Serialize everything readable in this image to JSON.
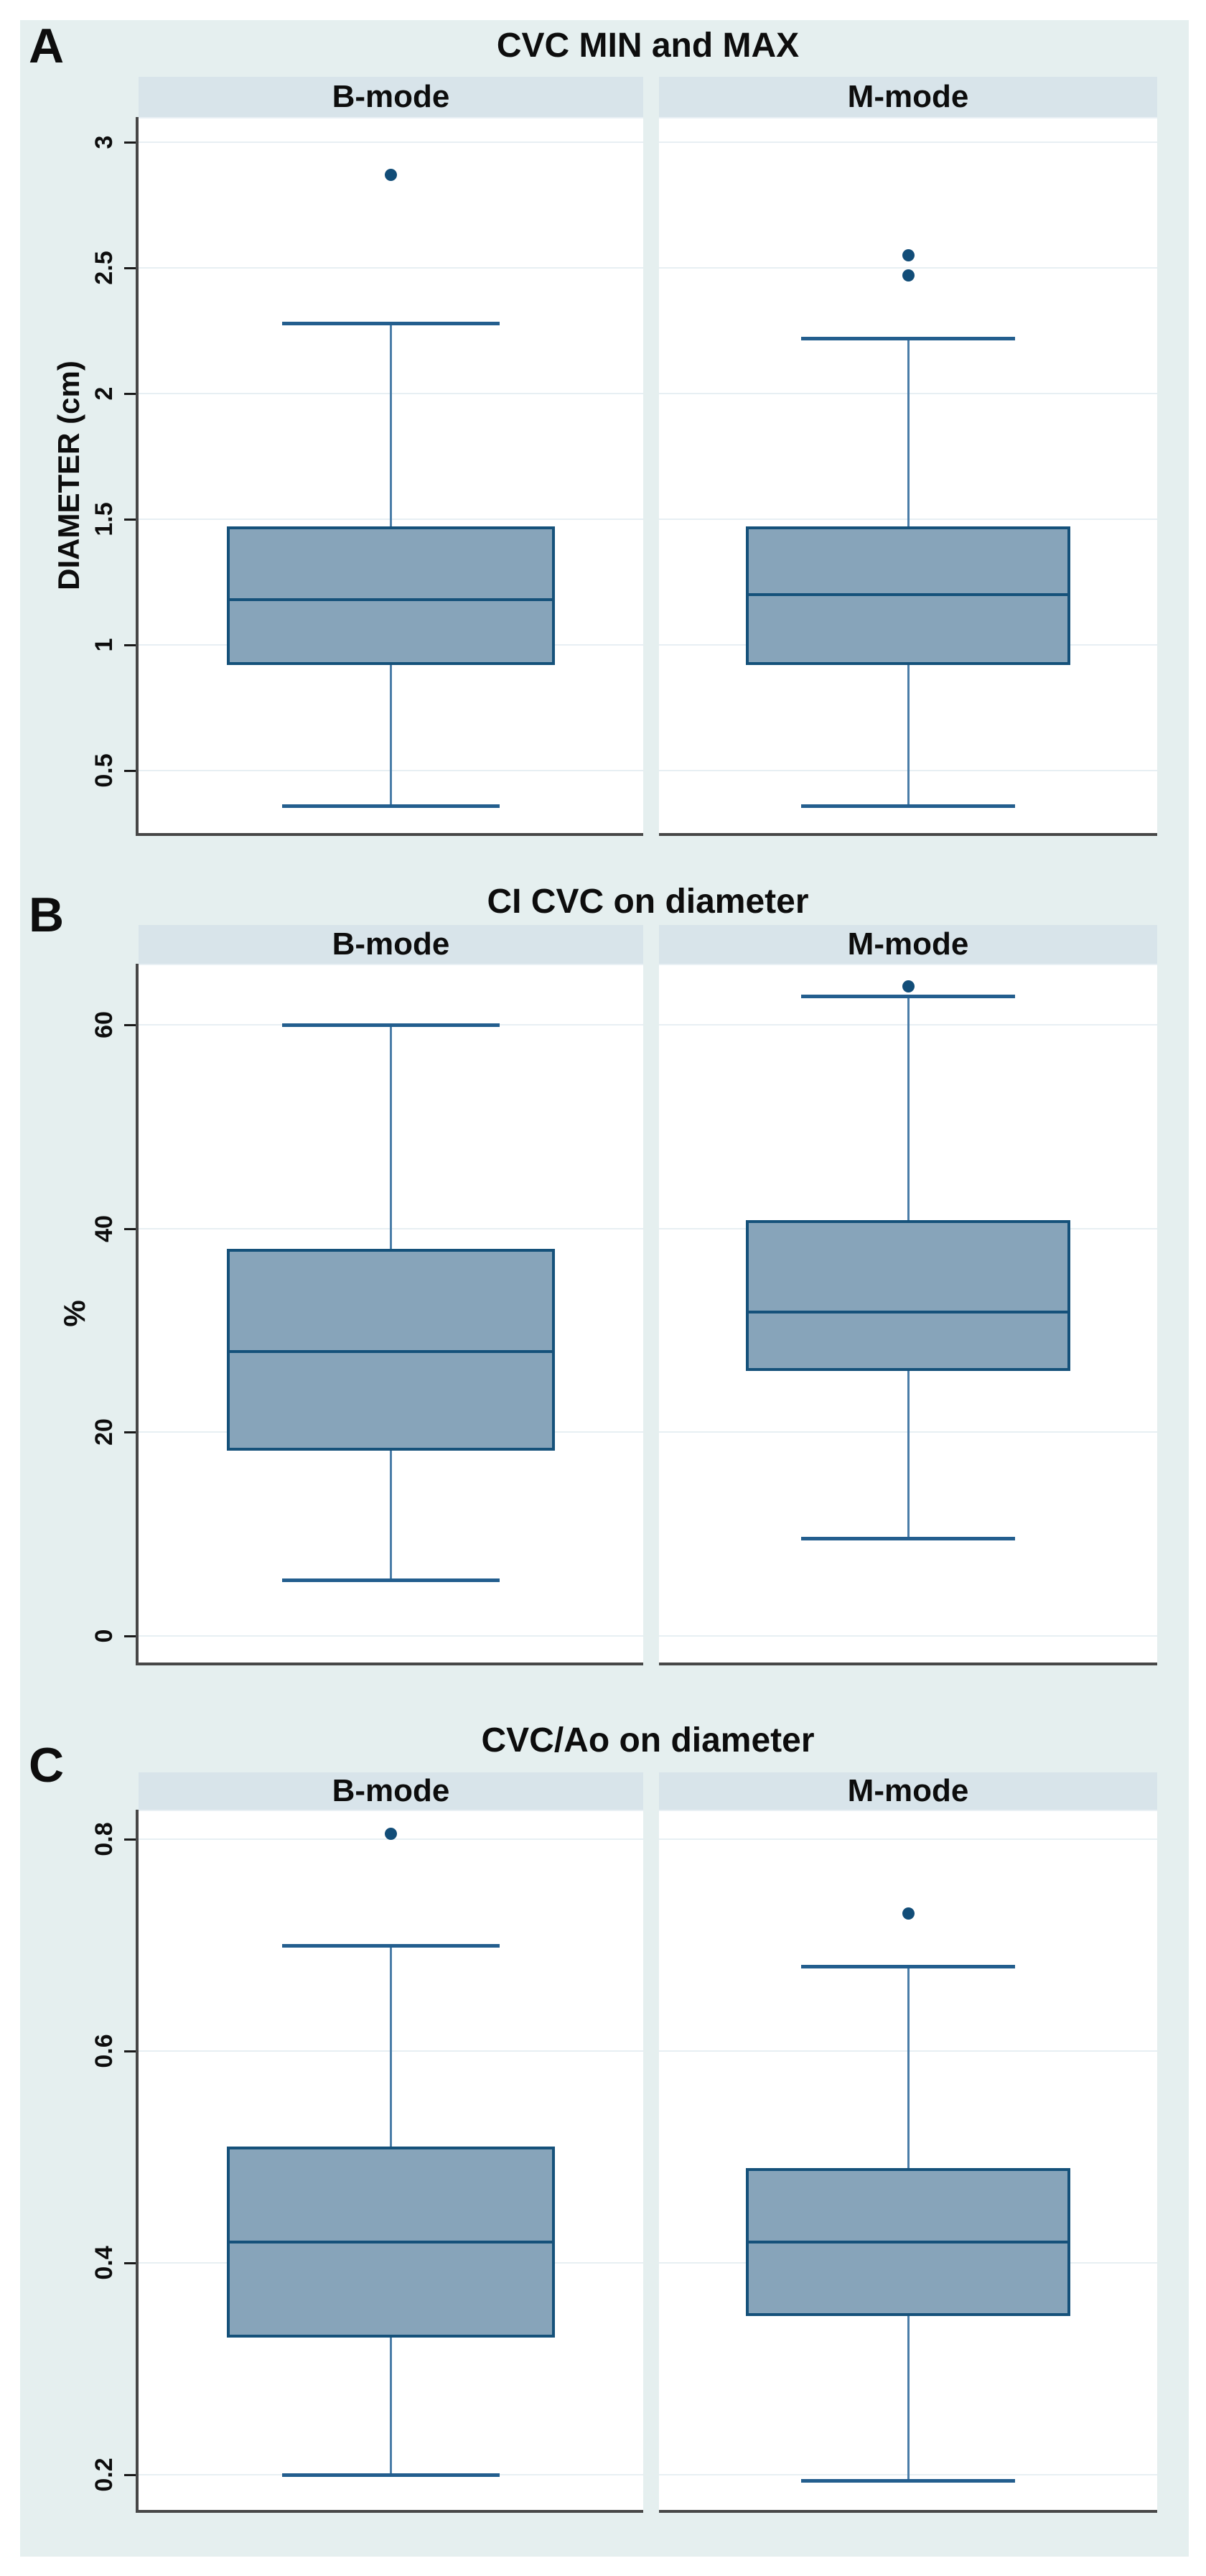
{
  "figure": {
    "panel_letters": [
      "A",
      "B",
      "C"
    ],
    "group_headers": [
      "B-mode",
      "M-mode"
    ]
  },
  "palette": {
    "figure_bg": "#e5efef",
    "strip_bg": "#d8e4ea",
    "plot_bg": "#ffffff",
    "gridline": "#e7eff3",
    "box_fill": "#87a4ba",
    "box_border": "#15517a",
    "median": "#15517a",
    "whisker_line": "#4a7da8",
    "whisker_cap": "#235e8e",
    "outlier": "#124d78",
    "axis_line": "#474747",
    "text": "#0d0d0d"
  },
  "chart_data": {
    "type": "box",
    "panels": [
      {
        "label": "A",
        "title": "CVC MIN and MAX",
        "ylabel": "DIAMETER (cm)",
        "ytick_values": [
          0.5,
          1,
          1.5,
          2,
          2.5,
          3
        ],
        "ytick_labels": [
          "0.5",
          "1",
          "1.5",
          "2",
          "2.5",
          "3"
        ],
        "ylim": [
          0.25,
          3.1
        ],
        "grid": true,
        "groups": [
          {
            "name": "B-mode",
            "low": 0.36,
            "q1": 0.92,
            "median": 1.18,
            "q3": 1.47,
            "high": 2.28,
            "outliers": [
              2.87
            ]
          },
          {
            "name": "M-mode",
            "low": 0.36,
            "q1": 0.92,
            "median": 1.2,
            "q3": 1.47,
            "high": 2.22,
            "outliers": [
              2.55,
              2.47
            ]
          }
        ]
      },
      {
        "label": "B",
        "title": "CI CVC on diameter",
        "ylabel": "%",
        "ytick_values": [
          0,
          20,
          40,
          60
        ],
        "ytick_labels": [
          "0",
          "20",
          "40",
          "60"
        ],
        "ylim": [
          -2.6,
          66
        ],
        "grid": true,
        "groups": [
          {
            "name": "B-mode",
            "low": 5.5,
            "q1": 18.2,
            "median": 27.9,
            "q3": 38.0,
            "high": 60.0,
            "outliers": []
          },
          {
            "name": "M-mode",
            "low": 9.6,
            "q1": 26.0,
            "median": 31.8,
            "q3": 40.8,
            "high": 62.8,
            "outliers": [
              63.8
            ]
          }
        ]
      },
      {
        "label": "C",
        "title": "CVC/Ao on diameter",
        "ylabel": "",
        "ytick_values": [
          0.2,
          0.4,
          0.6,
          0.8
        ],
        "ytick_labels": [
          "0.2",
          "0.4",
          "0.6",
          "0.8"
        ],
        "ylim": [
          0.167,
          0.828
        ],
        "grid": true,
        "groups": [
          {
            "name": "B-mode",
            "low": 0.2,
            "q1": 0.33,
            "median": 0.42,
            "q3": 0.51,
            "high": 0.7,
            "outliers": [
              0.805
            ]
          },
          {
            "name": "M-mode",
            "low": 0.195,
            "q1": 0.35,
            "median": 0.42,
            "q3": 0.49,
            "high": 0.68,
            "outliers": [
              0.73
            ]
          }
        ]
      }
    ]
  }
}
